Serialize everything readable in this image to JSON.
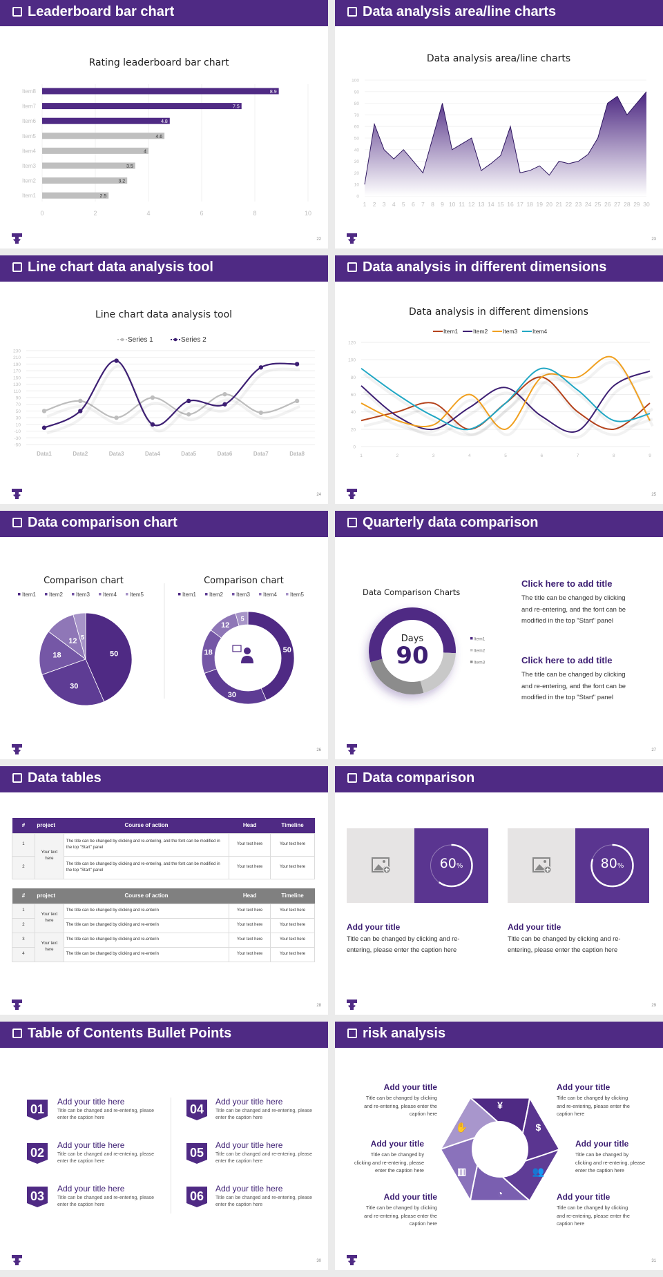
{
  "colors": {
    "accent": "#4f2a84",
    "dark_accent": "#3d1f73",
    "gray_bar": "#bfbfbf",
    "background": "#ebebeb"
  },
  "slides": [
    {
      "title": "Leaderboard bar chart",
      "page": "22"
    },
    {
      "title": "Data analysis area/line charts",
      "page": "23"
    },
    {
      "title": "Line chart data analysis tool",
      "page": "24"
    },
    {
      "title": "Data analysis in different dimensions",
      "page": "25"
    },
    {
      "title": "Data comparison chart",
      "page": "26"
    },
    {
      "title": "Quarterly data comparison",
      "page": "27"
    },
    {
      "title": "Data tables",
      "page": "28"
    },
    {
      "title": "Data comparison",
      "page": "29"
    },
    {
      "title": "Table of Contents Bullet Points",
      "page": "30"
    },
    {
      "title": "risk analysis",
      "page": "31"
    }
  ],
  "chart_data": [
    {
      "type": "bar",
      "orientation": "horizontal",
      "title": "Rating leaderboard bar chart",
      "categories": [
        "Item1",
        "Item2",
        "Item3",
        "Item4",
        "Item5",
        "Item6",
        "Item7",
        "Item8"
      ],
      "values": [
        2.5,
        3.2,
        3.5,
        4,
        4.6,
        4.8,
        7.5,
        8.9
      ],
      "data_labels": [
        "2.5",
        "3.2",
        "3.5",
        "4",
        "4.6",
        "4.8",
        "7.5",
        "8.9"
      ],
      "highlight_colors": [
        "#bfbfbf",
        "#bfbfbf",
        "#bfbfbf",
        "#bfbfbf",
        "#bfbfbf",
        "#4f2a84",
        "#4f2a84",
        "#4f2a84"
      ],
      "xlim": [
        0,
        10
      ],
      "xticks": [
        "0",
        "2",
        "4",
        "6",
        "8",
        "10"
      ],
      "grid": true
    },
    {
      "type": "area",
      "title": "Data analysis area/line charts",
      "x": [
        "1",
        "2",
        "3",
        "4",
        "5",
        "6",
        "7",
        "8",
        "9",
        "10",
        "11",
        "12",
        "13",
        "14",
        "15",
        "16",
        "17",
        "18",
        "19",
        "20",
        "21",
        "22",
        "23",
        "24",
        "25",
        "26",
        "27",
        "28",
        "29",
        "30"
      ],
      "values": [
        10,
        62,
        40,
        32,
        40,
        30,
        20,
        50,
        80,
        40,
        45,
        50,
        22,
        28,
        35,
        60,
        20,
        22,
        26,
        18,
        30,
        28,
        30,
        36,
        50,
        80,
        86,
        70,
        80,
        90
      ],
      "ylim": [
        0,
        100
      ],
      "yticks": [
        "0",
        "10",
        "20",
        "30",
        "40",
        "50",
        "60",
        "70",
        "80",
        "90",
        "100"
      ],
      "grid": true
    },
    {
      "type": "line",
      "title": "Line chart data analysis tool",
      "smooth": true,
      "categories": [
        "Data1",
        "Data2",
        "Data3",
        "Data4",
        "Data5",
        "Data6",
        "Data7",
        "Data8"
      ],
      "series": [
        {
          "name": "Series 1",
          "color": "#bdbdbd",
          "values": [
            50,
            80,
            30,
            90,
            40,
            100,
            45,
            80
          ]
        },
        {
          "name": "Series 2",
          "color": "#3d1f73",
          "values": [
            0,
            50,
            200,
            10,
            80,
            70,
            180,
            190
          ]
        }
      ],
      "ylim": [
        -50,
        230
      ],
      "yticks": [
        "230",
        "210",
        "190",
        "170",
        "150",
        "130",
        "110",
        "90",
        "70",
        "50",
        "30",
        "10",
        "-10",
        "-30",
        "-50"
      ],
      "legend": "top",
      "grid": true
    },
    {
      "type": "line",
      "title": "Data analysis in different dimensions",
      "smooth": true,
      "categories": [
        "1",
        "2",
        "3",
        "4",
        "5",
        "6",
        "7",
        "8",
        "9"
      ],
      "series": [
        {
          "name": "Item1",
          "color": "#b5431c",
          "values": [
            30,
            40,
            50,
            20,
            50,
            80,
            40,
            20,
            50
          ]
        },
        {
          "name": "Item2",
          "color": "#3d1f73",
          "values": [
            70,
            35,
            20,
            45,
            68,
            35,
            18,
            70,
            87
          ]
        },
        {
          "name": "Item3",
          "color": "#f0a020",
          "values": [
            50,
            30,
            25,
            60,
            20,
            80,
            80,
            102,
            30
          ]
        },
        {
          "name": "Item4",
          "color": "#22a7c4",
          "values": [
            90,
            60,
            35,
            20,
            50,
            90,
            65,
            30,
            38
          ]
        }
      ],
      "ylim": [
        0,
        120
      ],
      "yticks": [
        "0",
        "20",
        "40",
        "60",
        "80",
        "100",
        "120"
      ],
      "legend": "top",
      "grid": true
    },
    {
      "type": "pie",
      "title": "Comparison chart",
      "categories": [
        "Item1",
        "Item2",
        "Item3",
        "Item4",
        "Item5"
      ],
      "values": [
        50,
        30,
        18,
        12,
        5
      ],
      "data_labels": [
        "50",
        "30",
        "18",
        "12",
        "5"
      ],
      "colors": [
        "#4f2a84",
        "#5e3c94",
        "#7557a6",
        "#8f77b7",
        "#a794c8"
      ],
      "legend": "top"
    },
    {
      "type": "pie",
      "variant": "donut",
      "title": "Comparison chart",
      "categories": [
        "Item1",
        "Item2",
        "Item3",
        "Item4",
        "Item5"
      ],
      "values": [
        50,
        30,
        18,
        12,
        5
      ],
      "data_labels": [
        "50",
        "30",
        "18",
        "12",
        "5"
      ],
      "colors": [
        "#4f2a84",
        "#5e3c94",
        "#7557a6",
        "#8f77b7",
        "#a794c8"
      ],
      "legend": "top",
      "center_icon": "presenter-icon"
    },
    {
      "type": "pie",
      "variant": "donut",
      "title": "Data Comparison Charts",
      "categories": [
        "Item1",
        "Item2",
        "Item3"
      ],
      "values": [
        55,
        20,
        25
      ],
      "colors": [
        "#4f2a84",
        "#c8c8c8",
        "#8c8c8c"
      ],
      "legend": "right",
      "center_label": "Days",
      "center_value": "90"
    }
  ],
  "quarterly": {
    "blocks": [
      {
        "title": "Click here to add title",
        "lines": [
          "The title can be changed by clicking",
          "and re-entering, and the font can be",
          "modified in the top \"Start\" panel"
        ]
      },
      {
        "title": "Click here to add title",
        "lines": [
          "The title can be changed by clicking",
          "and re-entering, and the font can be",
          "modified in the top \"Start\" panel"
        ]
      }
    ]
  },
  "tables": {
    "headers": [
      "#",
      "project",
      "Course of action",
      "Head",
      "Timeline"
    ],
    "table1": {
      "project": "Your text here",
      "rows": [
        {
          "num": "1",
          "action": " The title can be changed by clicking and re-entering, and the font can be modified in the top \"Start\" panel",
          "head": "Your text here",
          "timeline": "Your text here"
        },
        {
          "num": "2",
          "action": "The title can be changed by clicking and re-entering, and the font can be modified in the top \"Start\" panel",
          "head": "Your text here",
          "timeline": "Your text here"
        }
      ]
    },
    "table2": {
      "projects": [
        "Your text here",
        "Your text here"
      ],
      "rows": [
        {
          "num": "1",
          "action": "The title can be changed by clicking and re-enterin",
          "head": "Your text here",
          "timeline": "Your text here"
        },
        {
          "num": "2",
          "action": "The title can be changed by clicking and re-enterin",
          "head": "Your text here",
          "timeline": "Your text here"
        },
        {
          "num": "3",
          "action": "The title can be changed by clicking and re-enterin",
          "head": "Your text here",
          "timeline": "Your text here"
        },
        {
          "num": "4",
          "action": "The title can be changed by clicking and re-enterin",
          "head": "Your text here",
          "timeline": "Your text here"
        }
      ]
    }
  },
  "comparison": {
    "cards": [
      {
        "percent": 60,
        "value": "60",
        "unit": "%",
        "title": "Add your title",
        "lines": [
          "Title can be changed by clicking and re-",
          "entering, please enter the caption here"
        ],
        "image_icon": "add-image-icon"
      },
      {
        "percent": 80,
        "value": "80",
        "unit": "%",
        "title": "Add your title",
        "lines": [
          "Title can be changed by clicking and re-",
          "entering, please enter the caption here"
        ],
        "image_icon": "add-image-icon"
      }
    ]
  },
  "toc": {
    "items": [
      {
        "num": "01",
        "title": "Add your title here",
        "body": "Title can be changed and re-entering, please enter the caption here"
      },
      {
        "num": "02",
        "title": "Add your title here",
        "body": "Title can be changed and re-entering, please enter the caption here"
      },
      {
        "num": "03",
        "title": "Add your title here",
        "body": "Title can be changed and re-entering, please enter the caption here"
      },
      {
        "num": "04",
        "title": "Add your title here",
        "body": "Title can be changed and re-entering, please enter the caption here"
      },
      {
        "num": "05",
        "title": "Add your title here",
        "body": "Title can be changed and re-entering, please enter the caption here"
      },
      {
        "num": "06",
        "title": "Add your title here",
        "body": "Title can be changed and re-entering, please enter the caption here"
      }
    ]
  },
  "risk": {
    "items": [
      {
        "title": "Add your title",
        "lines": [
          "Title can be changed by clicking",
          "and re-entering, please enter the",
          "caption here"
        ],
        "icon": "money-bag-icon"
      },
      {
        "title": "Add your title",
        "lines": [
          "Title can be changed by",
          "clicking and re-entering, please",
          "enter the caption here"
        ],
        "icon": "hand-coin-icon"
      },
      {
        "title": "Add your title",
        "lines": [
          "Title can be changed by clicking",
          "and re-entering, please enter the",
          "caption here"
        ],
        "icon": "building-icon"
      },
      {
        "title": "Add your title",
        "lines": [
          "Title can be changed by clicking",
          "and re-entering, please enter the",
          "caption here"
        ],
        "icon": "coins-icon"
      },
      {
        "title": "Add your title",
        "lines": [
          "Title can be changed by",
          "clicking and re-entering, please",
          "enter the caption here"
        ],
        "icon": "users-icon"
      },
      {
        "title": "Add your title",
        "lines": [
          "Title can be changed by clicking",
          "and re-entering, please enter the",
          "caption here"
        ],
        "icon": "pie-chart-icon"
      }
    ]
  }
}
